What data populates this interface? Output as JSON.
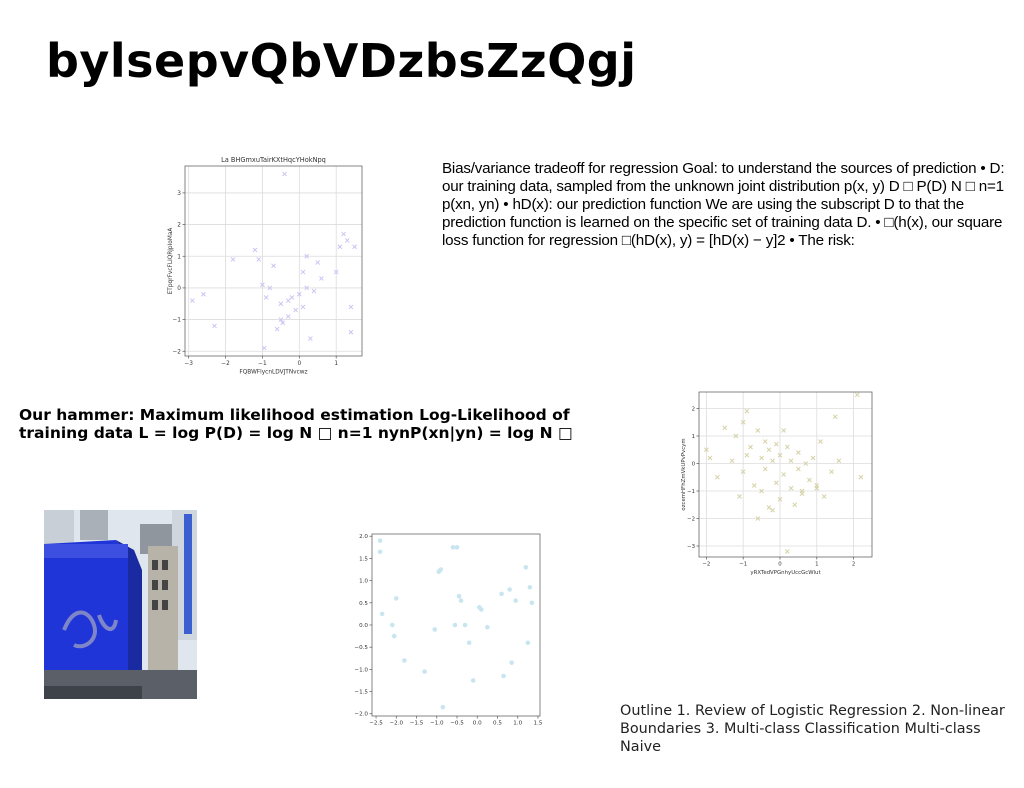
{
  "slide": {
    "title": "bylsepvQbVDzbsZzQgj",
    "body_text": "Bias/variance tradeoff for regression Goal: to understand the sources of prediction • D: our training data, sampled from the unknown joint distribution p(x, y) D □ P(D) N □ n=1 p(xn, yn) • hD(x): our prediction function We are using the subscript D to that the prediction function is learned on the specific set of training data D. • □(h(x), our square loss function for regression □(hD(x), y) = [hD(x) − y]2 • The risk:",
    "hammer_text": "Our hammer: Maximum likelihood estimation Log-Likelihood of training data L = log P(D) = log N □ n=1 nynP(xn|yn) = log N □",
    "outline_text": "Outline 1. Review of Logistic Regression 2. Non-linear Boundaries 3. Multi-class Classification Multi-class Naive",
    "photo_icon": "building-photo"
  },
  "chart_data": [
    {
      "type": "scatter",
      "title": "La BHGmxuTairKXtHqcYHokNpq",
      "xlabel": "FQBWFlycnLDVJTNvcwz",
      "ylabel": "ETpqrFvcFLiQRjpIoMaA",
      "xlim": [
        -3.1,
        1.7
      ],
      "ylim": [
        -2.15,
        3.85
      ],
      "xticks": [
        -3,
        -2,
        -1,
        0,
        1
      ],
      "yticks": [
        -2,
        -1,
        0,
        1,
        2,
        3
      ],
      "grid": true,
      "marker": "x",
      "color": "#c9c3f2",
      "x": [
        -2.9,
        -2.6,
        -2.3,
        -1.8,
        -1.2,
        -1.1,
        -1.0,
        -0.9,
        -0.8,
        -0.7,
        -0.6,
        -0.5,
        -0.5,
        -0.4,
        -0.3,
        -0.3,
        -0.2,
        -0.1,
        0.0,
        0.1,
        0.1,
        0.2,
        0.2,
        0.3,
        0.4,
        0.5,
        0.6,
        1.0,
        1.1,
        1.2,
        1.3,
        1.4,
        1.4,
        1.5,
        -0.45,
        -0.95
      ],
      "y": [
        -0.4,
        -0.2,
        -1.2,
        0.9,
        1.2,
        0.9,
        0.1,
        -0.3,
        0.0,
        0.7,
        -1.3,
        -1.0,
        -0.5,
        3.6,
        -0.9,
        -0.4,
        -0.3,
        -0.7,
        -0.2,
        0.5,
        -0.6,
        1.0,
        0.0,
        -1.6,
        -0.1,
        0.8,
        0.3,
        0.5,
        1.3,
        1.7,
        1.5,
        -0.6,
        -1.4,
        1.3,
        -1.1,
        -1.9
      ]
    },
    {
      "type": "scatter",
      "title": "",
      "xlabel": "yRXTedVPGnhyUccGcWlut",
      "ylabel": "ozcemHFhZmVkUPvPvcym",
      "xlim": [
        -2.2,
        2.5
      ],
      "ylim": [
        -3.4,
        2.6
      ],
      "xticks": [
        -2,
        -1,
        0,
        1,
        2
      ],
      "yticks": [
        -3,
        -2,
        -1,
        0,
        1,
        2
      ],
      "grid": true,
      "marker": "x",
      "color": "#d6d2a8",
      "x": [
        -2.0,
        -1.9,
        -1.7,
        -1.5,
        -1.3,
        -1.2,
        -1.1,
        -1.0,
        -1.0,
        -0.9,
        -0.9,
        -0.8,
        -0.7,
        -0.6,
        -0.5,
        -0.5,
        -0.4,
        -0.4,
        -0.3,
        -0.3,
        -0.2,
        -0.1,
        -0.1,
        0.0,
        0.0,
        0.1,
        0.1,
        0.2,
        0.3,
        0.3,
        0.4,
        0.5,
        0.5,
        0.6,
        0.7,
        0.8,
        0.9,
        1.0,
        1.1,
        1.2,
        1.4,
        1.5,
        1.6,
        2.1,
        2.2,
        -0.6,
        0.2,
        -0.2,
        0.6,
        1.0
      ],
      "y": [
        0.5,
        0.2,
        -0.5,
        1.3,
        0.1,
        1.0,
        -1.2,
        1.5,
        -0.3,
        0.3,
        1.9,
        0.6,
        -0.8,
        1.2,
        0.2,
        -1.0,
        0.8,
        -0.2,
        0.5,
        -1.6,
        0.1,
        0.7,
        -0.7,
        0.3,
        -1.3,
        1.2,
        -0.4,
        0.6,
        -0.9,
        0.1,
        -1.5,
        0.4,
        -0.2,
        -1.1,
        0.0,
        -0.6,
        0.2,
        -0.8,
        0.8,
        -1.2,
        -0.3,
        1.7,
        0.1,
        2.5,
        -0.5,
        -2.0,
        -3.2,
        -1.7,
        -1.0,
        -0.9
      ]
    },
    {
      "type": "scatter",
      "title": "",
      "xlabel": "",
      "ylabel": "",
      "xlim": [
        -2.6,
        1.55
      ],
      "ylim": [
        -2.05,
        2.05
      ],
      "xticks": [
        -2.5,
        -2.0,
        -1.5,
        -1.0,
        -0.5,
        0.0,
        0.5,
        1.0,
        1.5
      ],
      "xtick_labels": [
        "−2.5",
        "−2.0",
        "−1.5",
        "−1.0",
        "−0.5",
        "0.0",
        "0.5",
        "1.0",
        "1.5"
      ],
      "yticks": [
        -2.0,
        -1.5,
        -1.0,
        -0.5,
        0.0,
        0.5,
        1.0,
        1.5,
        2.0
      ],
      "ytick_labels": [
        "−2.0",
        "−1.5",
        "−1.0",
        "−0.5",
        "0.0",
        "0.5",
        "1.0",
        "1.5",
        "2.0"
      ],
      "grid": false,
      "marker": "o",
      "color": "#c8e6ef",
      "x": [
        -2.4,
        -2.4,
        -2.35,
        -2.1,
        -2.05,
        -2.0,
        -1.8,
        -1.3,
        -1.05,
        -0.95,
        -0.9,
        -0.85,
        -0.6,
        -0.55,
        -0.5,
        -0.45,
        -0.4,
        -0.3,
        -0.2,
        -0.1,
        0.05,
        0.1,
        0.25,
        0.6,
        0.65,
        0.8,
        0.85,
        0.95,
        1.2,
        1.25,
        1.3,
        1.35
      ],
      "y": [
        1.9,
        1.65,
        0.25,
        0.0,
        -0.25,
        0.6,
        -0.8,
        -1.05,
        -0.1,
        1.2,
        1.25,
        -1.85,
        1.75,
        0.0,
        1.75,
        0.65,
        0.55,
        0.0,
        -0.4,
        -1.25,
        0.4,
        0.35,
        -0.05,
        0.7,
        -1.15,
        0.8,
        -0.85,
        0.55,
        1.3,
        -0.4,
        0.85,
        0.5
      ]
    }
  ]
}
